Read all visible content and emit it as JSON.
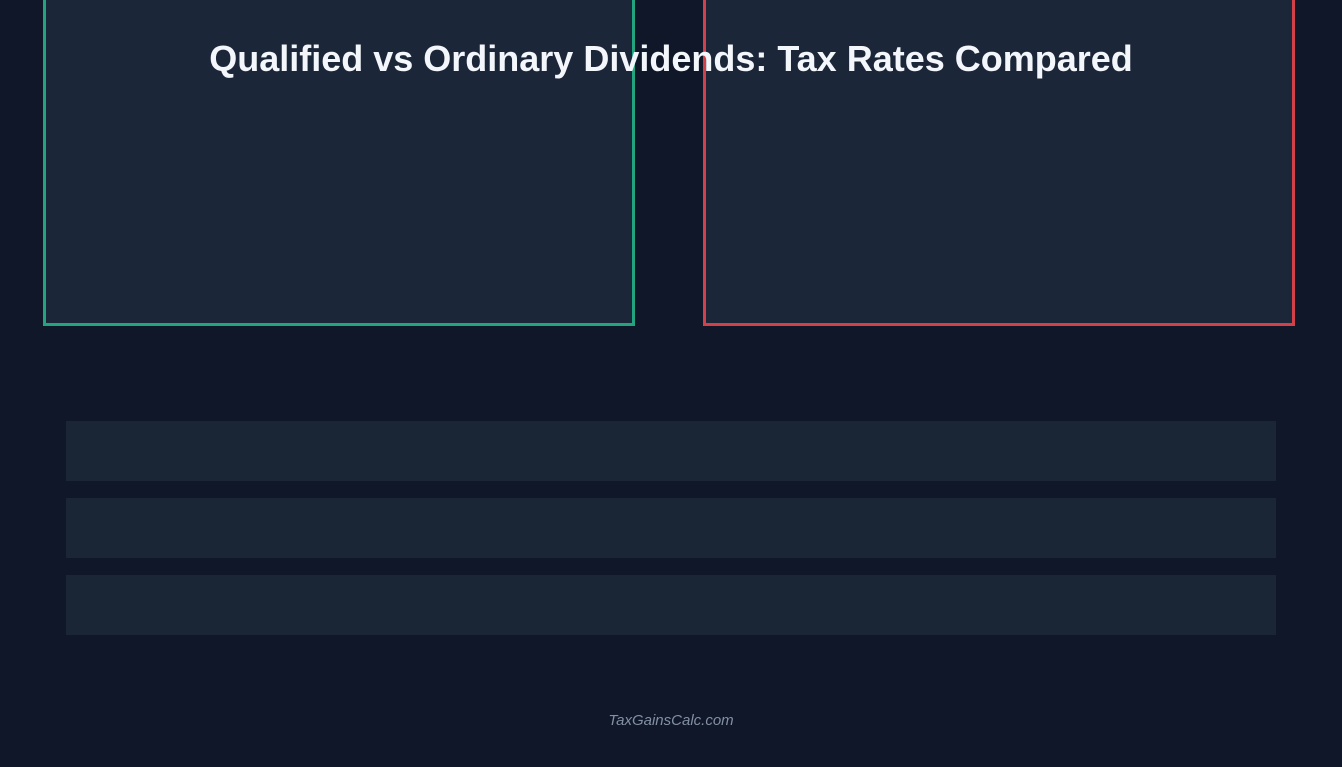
{
  "header": {
    "title": "Qualified vs Ordinary Dividends: Tax Rates Compared"
  },
  "footer": {
    "text": "TaxGainsCalc.com"
  }
}
